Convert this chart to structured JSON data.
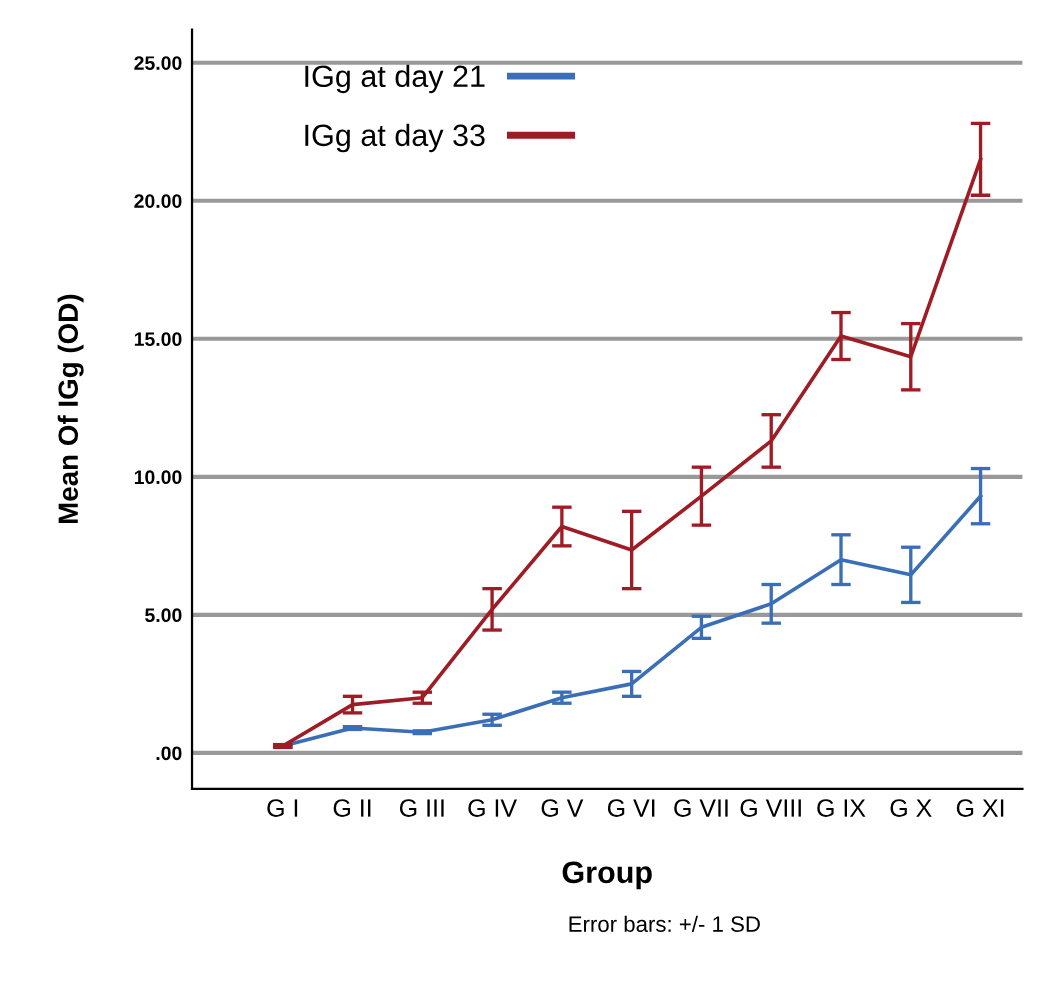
{
  "chart_data": {
    "type": "line",
    "xlabel": "Group",
    "ylabel": "Mean Of IGg (OD)",
    "categories": [
      "G I",
      "G II",
      "G III",
      "G IV",
      "G V",
      "G VI",
      "G VII",
      "G VIII",
      "G IX",
      "G X",
      "G XI"
    ],
    "series": [
      {
        "name": "IGg at day 21",
        "color": "#3a6fb8",
        "values": [
          0.25,
          0.9,
          0.75,
          1.2,
          2.0,
          2.5,
          4.55,
          5.4,
          7.0,
          6.45,
          9.3
        ],
        "errors": [
          0.05,
          0.05,
          0.05,
          0.2,
          0.2,
          0.45,
          0.4,
          0.7,
          0.9,
          1.0,
          1.0
        ]
      },
      {
        "name": "IGg at day 33",
        "color": "#a01c24",
        "values": [
          0.25,
          1.75,
          2.0,
          5.2,
          8.2,
          7.35,
          9.3,
          11.3,
          15.1,
          14.35,
          21.5
        ],
        "errors": [
          0.05,
          0.3,
          0.2,
          0.75,
          0.7,
          1.4,
          1.05,
          0.95,
          0.85,
          1.2,
          1.3
        ]
      }
    ],
    "ylim": [
      -1.3,
      26.2
    ],
    "yticks": [
      {
        "value": 0,
        "label": ".00"
      },
      {
        "value": 5,
        "label": "5.00"
      },
      {
        "value": 10,
        "label": "10.00"
      },
      {
        "value": 15,
        "label": "15.00"
      },
      {
        "value": 20,
        "label": "20.00"
      },
      {
        "value": 25,
        "label": "25.00"
      }
    ],
    "grid": "y",
    "legend": "top left",
    "marker": "none",
    "line_style": "solid",
    "annotations": [
      "Error bars: +/- 1 SD"
    ]
  }
}
